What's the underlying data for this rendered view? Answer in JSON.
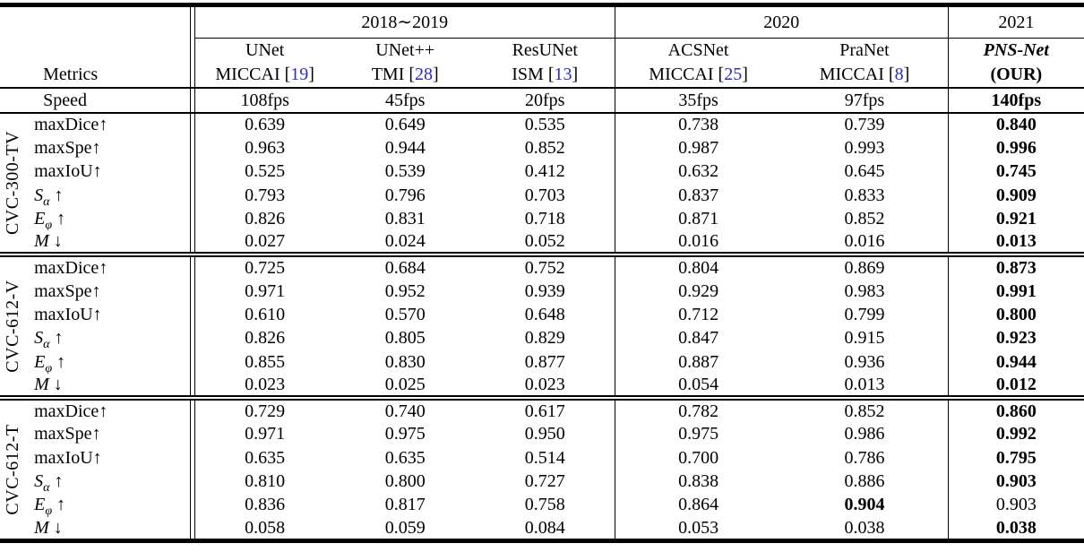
{
  "colors": {
    "citation_blue": "#2a2ad2",
    "text": "#000000",
    "background": "#ffffff"
  },
  "punct": {
    "open": "[",
    "close": "]"
  },
  "header": {
    "metrics_label": "Metrics",
    "speed_label": "Speed",
    "years": [
      {
        "label": "2018∼2019"
      },
      {
        "label": "2020"
      },
      {
        "label": "2021"
      }
    ],
    "methods": [
      {
        "name": "UNet",
        "venue": "MICCAI",
        "cite": "19",
        "speed": "108fps"
      },
      {
        "name": "UNet++",
        "venue": "TMI",
        "cite": "28",
        "speed": "45fps"
      },
      {
        "name": "ResUNet",
        "venue": "ISM",
        "cite": "13",
        "speed": "20fps"
      },
      {
        "name": "ACSNet",
        "venue": "MICCAI",
        "cite": "25",
        "speed": "35fps"
      },
      {
        "name": "PraNet",
        "venue": "MICCAI",
        "cite": "8",
        "speed": "97fps"
      },
      {
        "name": "PNS-Net",
        "venue": "(OUR)",
        "cite": "",
        "speed": "140fps"
      }
    ]
  },
  "blocks": [
    {
      "dataset": "CVC-300-TV",
      "rows": [
        {
          "metric": {
            "text": "maxDice",
            "sub": "",
            "arrow": "↑",
            "italic": false
          },
          "values": [
            "0.639",
            "0.649",
            "0.535",
            "0.738",
            "0.739",
            "0.840"
          ],
          "bold": [
            5
          ]
        },
        {
          "metric": {
            "text": "maxSpe",
            "sub": "",
            "arrow": "↑",
            "italic": false
          },
          "values": [
            "0.963",
            "0.944",
            "0.852",
            "0.987",
            "0.993",
            "0.996"
          ],
          "bold": [
            5
          ]
        },
        {
          "metric": {
            "text": "maxIoU",
            "sub": "",
            "arrow": "↑",
            "italic": false
          },
          "values": [
            "0.525",
            "0.539",
            "0.412",
            "0.632",
            "0.645",
            "0.745"
          ],
          "bold": [
            5
          ]
        },
        {
          "metric": {
            "text": "S",
            "sub": "α",
            "arrow": " ↑",
            "italic": true
          },
          "values": [
            "0.793",
            "0.796",
            "0.703",
            "0.837",
            "0.833",
            "0.909"
          ],
          "bold": [
            5
          ]
        },
        {
          "metric": {
            "text": "E",
            "sub": "φ",
            "arrow": " ↑",
            "italic": true
          },
          "values": [
            "0.826",
            "0.831",
            "0.718",
            "0.871",
            "0.852",
            "0.921"
          ],
          "bold": [
            5
          ]
        },
        {
          "metric": {
            "text": "M",
            "sub": "",
            "arrow": " ↓",
            "italic": true
          },
          "values": [
            "0.027",
            "0.024",
            "0.052",
            "0.016",
            "0.016",
            "0.013"
          ],
          "bold": [
            5
          ]
        }
      ]
    },
    {
      "dataset": "CVC-612-V",
      "rows": [
        {
          "metric": {
            "text": "maxDice",
            "sub": "",
            "arrow": "↑",
            "italic": false
          },
          "values": [
            "0.725",
            "0.684",
            "0.752",
            "0.804",
            "0.869",
            "0.873"
          ],
          "bold": [
            5
          ]
        },
        {
          "metric": {
            "text": "maxSpe",
            "sub": "",
            "arrow": "↑",
            "italic": false
          },
          "values": [
            "0.971",
            "0.952",
            "0.939",
            "0.929",
            "0.983",
            "0.991"
          ],
          "bold": [
            5
          ]
        },
        {
          "metric": {
            "text": "maxIoU",
            "sub": "",
            "arrow": "↑",
            "italic": false
          },
          "values": [
            "0.610",
            "0.570",
            "0.648",
            "0.712",
            "0.799",
            "0.800"
          ],
          "bold": [
            5
          ]
        },
        {
          "metric": {
            "text": "S",
            "sub": "α",
            "arrow": " ↑",
            "italic": true
          },
          "values": [
            "0.826",
            "0.805",
            "0.829",
            "0.847",
            "0.915",
            "0.923"
          ],
          "bold": [
            5
          ]
        },
        {
          "metric": {
            "text": "E",
            "sub": "φ",
            "arrow": " ↑",
            "italic": true
          },
          "values": [
            "0.855",
            "0.830",
            "0.877",
            "0.887",
            "0.936",
            "0.944"
          ],
          "bold": [
            5
          ]
        },
        {
          "metric": {
            "text": "M",
            "sub": "",
            "arrow": " ↓",
            "italic": true
          },
          "values": [
            "0.023",
            "0.025",
            "0.023",
            "0.054",
            "0.013",
            "0.012"
          ],
          "bold": [
            5
          ]
        }
      ]
    },
    {
      "dataset": "CVC-612-T",
      "rows": [
        {
          "metric": {
            "text": "maxDice",
            "sub": "",
            "arrow": "↑",
            "italic": false
          },
          "values": [
            "0.729",
            "0.740",
            "0.617",
            "0.782",
            "0.852",
            "0.860"
          ],
          "bold": [
            5
          ]
        },
        {
          "metric": {
            "text": "maxSpe",
            "sub": "",
            "arrow": "↑",
            "italic": false
          },
          "values": [
            "0.971",
            "0.975",
            "0.950",
            "0.975",
            "0.986",
            "0.992"
          ],
          "bold": [
            5
          ]
        },
        {
          "metric": {
            "text": "maxIoU",
            "sub": "",
            "arrow": "↑",
            "italic": false
          },
          "values": [
            "0.635",
            "0.635",
            "0.514",
            "0.700",
            "0.786",
            "0.795"
          ],
          "bold": [
            5
          ]
        },
        {
          "metric": {
            "text": "S",
            "sub": "α",
            "arrow": " ↑",
            "italic": true
          },
          "values": [
            "0.810",
            "0.800",
            "0.727",
            "0.838",
            "0.886",
            "0.903"
          ],
          "bold": [
            5
          ]
        },
        {
          "metric": {
            "text": "E",
            "sub": "φ",
            "arrow": " ↑",
            "italic": true
          },
          "values": [
            "0.836",
            "0.817",
            "0.758",
            "0.864",
            "0.904",
            "0.903"
          ],
          "bold": [
            4
          ]
        },
        {
          "metric": {
            "text": "M",
            "sub": "",
            "arrow": " ↓",
            "italic": true
          },
          "values": [
            "0.058",
            "0.059",
            "0.084",
            "0.053",
            "0.038",
            "0.038"
          ],
          "bold": [
            5
          ]
        }
      ]
    }
  ]
}
